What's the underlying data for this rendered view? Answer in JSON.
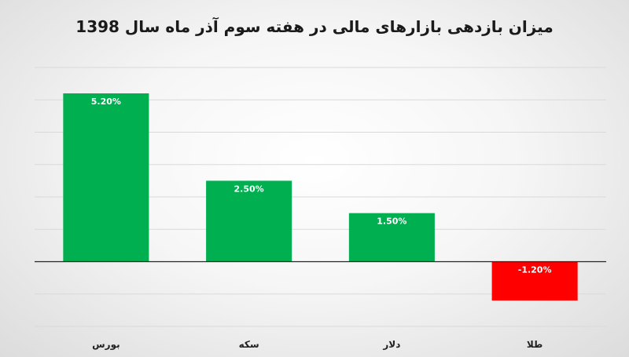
{
  "chart_data": {
    "type": "bar",
    "title": "میزان بازدهی بازارهای مالی در هفته سوم آذر ماه سال 1398",
    "xlabel": "",
    "ylabel": "",
    "categories": [
      "بورس",
      "سکه",
      "دلار",
      "طلا"
    ],
    "values": [
      5.2,
      2.5,
      1.5,
      -1.2
    ],
    "data_labels": [
      "5.20%",
      "2.50%",
      "1.50%",
      "-1.20%"
    ],
    "unit": "%",
    "ylim": [
      -2,
      6
    ],
    "grid_step": 1,
    "grid": true,
    "legend": "none",
    "colors": {
      "positive": "#00B050",
      "negative": "#FF0000",
      "gridline": "#d9d9d9",
      "axis": "#262626"
    }
  }
}
